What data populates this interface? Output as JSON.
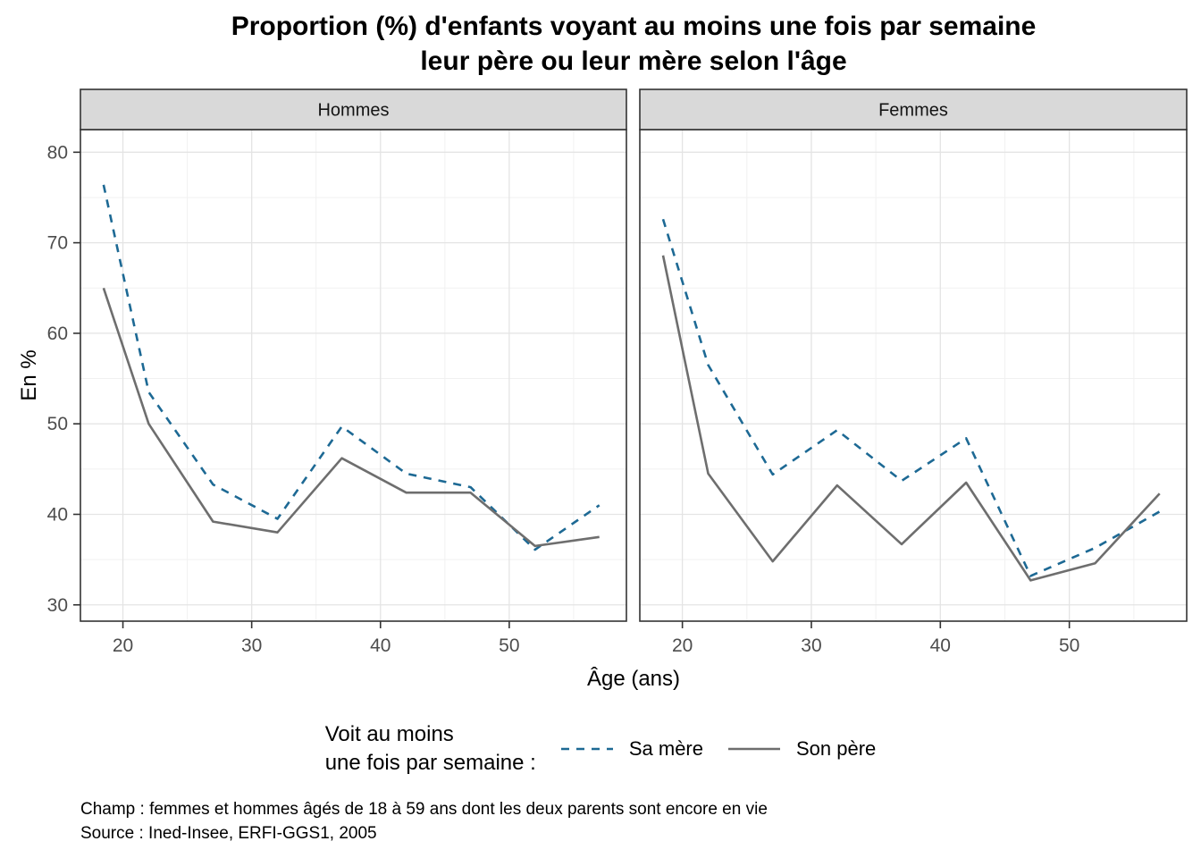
{
  "title": {
    "line1": "Proportion (%) d'enfants voyant au moins une fois par semaine",
    "line2": "leur père ou leur mère selon l'âge"
  },
  "legend": {
    "title_line1": "Voit au moins",
    "title_line2": "une fois par semaine :",
    "items": [
      {
        "label": "Sa mère",
        "style": "dashed",
        "color": "#1d6994"
      },
      {
        "label": "Son père",
        "style": "solid",
        "color": "#6e6e6e"
      }
    ]
  },
  "caption": {
    "line1": "Champ : femmes et hommes âgés de 18 à 59 ans dont les deux parents sont encore en vie",
    "line2": "Source : Ined-Insee, ERFI-GGS1, 2005"
  },
  "colors": {
    "strip_bg": "#d9d9d9",
    "panel_bg": "#ffffff",
    "panel_border": "#333333",
    "grid_major": "#e4e4e4",
    "grid_minor": "#f1f1f1",
    "tick_text": "#4d4d4d",
    "axis_title": "#000000",
    "strip_text": "#141414"
  },
  "chart_data": {
    "type": "line",
    "title": "Proportion (%) d'enfants voyant au moins une fois par semaine leur père ou leur mère selon l'âge",
    "xlabel": "Âge (ans)",
    "ylabel": "En %",
    "x": [
      18.5,
      22,
      27,
      32,
      37,
      42,
      47,
      52,
      57
    ],
    "xlim": [
      16.7,
      59.1
    ],
    "ylim": [
      28.2,
      82.5
    ],
    "x_ticks": [
      20,
      30,
      40,
      50
    ],
    "y_ticks": [
      30,
      40,
      50,
      60,
      70,
      80
    ],
    "x_minor_ticks": [
      25,
      35,
      45,
      55
    ],
    "y_minor_ticks": [
      35,
      45,
      55,
      65,
      75
    ],
    "grid": true,
    "legend_position": "bottom",
    "facets": [
      {
        "name": "Hommes",
        "series": [
          {
            "name": "Sa mère",
            "style": "dashed",
            "values": [
              76.4,
              53.5,
              43.3,
              39.5,
              49.7,
              44.5,
              43.0,
              36.1,
              41.0
            ]
          },
          {
            "name": "Son père",
            "style": "solid",
            "values": [
              65.0,
              50.0,
              39.2,
              38.0,
              46.2,
              42.4,
              42.4,
              36.5,
              37.5
            ]
          }
        ]
      },
      {
        "name": "Femmes",
        "series": [
          {
            "name": "Sa mère",
            "style": "dashed",
            "values": [
              72.6,
              56.5,
              44.4,
              49.3,
              43.7,
              48.4,
              33.2,
              36.3,
              40.3
            ]
          },
          {
            "name": "Son père",
            "style": "solid",
            "values": [
              68.6,
              44.5,
              34.8,
              43.2,
              36.7,
              43.5,
              32.7,
              34.6,
              42.3
            ]
          }
        ]
      }
    ]
  }
}
